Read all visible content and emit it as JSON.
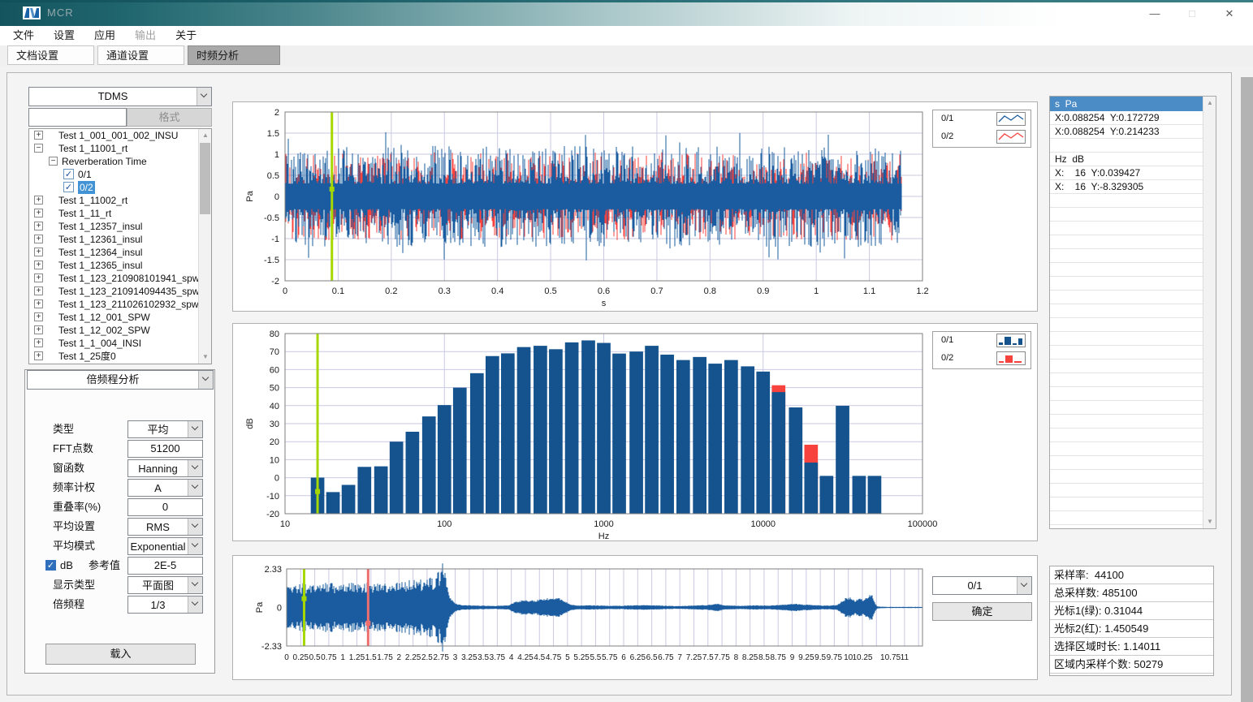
{
  "window": {
    "title": "MCR",
    "controls": [
      {
        "name": "minimize",
        "glyph": "—"
      },
      {
        "name": "maximize",
        "glyph": "□"
      },
      {
        "name": "close",
        "glyph": "✕"
      }
    ]
  },
  "menu": {
    "items": [
      {
        "name": "file",
        "label": "文件",
        "enabled": true
      },
      {
        "name": "settings",
        "label": "设置",
        "enabled": true
      },
      {
        "name": "application",
        "label": "应用",
        "enabled": true
      },
      {
        "name": "output",
        "label": "输出",
        "enabled": false
      },
      {
        "name": "about",
        "label": "关于",
        "enabled": true
      }
    ]
  },
  "tabs": [
    {
      "name": "document-settings",
      "label": "文档设置",
      "active": false
    },
    {
      "name": "channel-settings",
      "label": "通道设置",
      "active": false
    },
    {
      "name": "time-frequency-analysis",
      "label": "时频分析",
      "active": true
    }
  ],
  "sidebar": {
    "format_dropdown": "TDMS",
    "filter_input": "",
    "format_button": "格式",
    "tree": [
      {
        "label": "Test 1_001_001_002_INSU",
        "level": 0,
        "expander": "+"
      },
      {
        "label": "Test 1_11001_rt",
        "level": 0,
        "expander": "-"
      },
      {
        "label": "Reverberation Time",
        "level": 1,
        "expander": "-"
      },
      {
        "label": "0/1",
        "level": 2,
        "checkbox": true,
        "checked": true
      },
      {
        "label": "0/2",
        "level": 2,
        "checkbox": true,
        "checked": true,
        "selected": true
      },
      {
        "label": "Test 1_11002_rt",
        "level": 0,
        "expander": "+"
      },
      {
        "label": "Test 1_11_rt",
        "level": 0,
        "expander": "+"
      },
      {
        "label": "Test 1_12357_insul",
        "level": 0,
        "expander": "+"
      },
      {
        "label": "Test 1_12361_insul",
        "level": 0,
        "expander": "+"
      },
      {
        "label": "Test 1_12364_insul",
        "level": 0,
        "expander": "+"
      },
      {
        "label": "Test 1_12365_insul",
        "level": 0,
        "expander": "+"
      },
      {
        "label": "Test 1_123_210908101941_spw",
        "level": 0,
        "expander": "+"
      },
      {
        "label": "Test 1_123_210914094435_spw",
        "level": 0,
        "expander": "+"
      },
      {
        "label": "Test 1_123_211026102932_spw",
        "level": 0,
        "expander": "+"
      },
      {
        "label": "Test 1_12_001_SPW",
        "level": 0,
        "expander": "+"
      },
      {
        "label": "Test 1_12_002_SPW",
        "level": 0,
        "expander": "+"
      },
      {
        "label": "Test 1_1_004_INSI",
        "level": 0,
        "expander": "+"
      },
      {
        "label": "Test 1_25度0",
        "level": 0,
        "expander": "+"
      }
    ],
    "analysis_dropdown": "倍频程分析",
    "fields": [
      {
        "name": "type",
        "label": "类型",
        "type": "select",
        "value": "平均"
      },
      {
        "name": "fft-points",
        "label": "FFT点数",
        "type": "input",
        "value": "51200"
      },
      {
        "name": "window-function",
        "label": "窗函数",
        "type": "select",
        "value": "Hanning"
      },
      {
        "name": "frequency-weighting",
        "label": "频率计权",
        "type": "select",
        "value": "A"
      },
      {
        "name": "overlap-percent",
        "label": "重叠率(%)",
        "type": "input",
        "value": "0"
      },
      {
        "name": "average-setting",
        "label": "平均设置",
        "type": "select",
        "value": "RMS"
      },
      {
        "name": "average-mode",
        "label": "平均模式",
        "type": "select",
        "value": "Exponential"
      },
      {
        "name": "db-reference",
        "label": "dB",
        "label2": "参考值",
        "type": "checkbox-input",
        "checked": true,
        "value": "2E-5"
      },
      {
        "name": "display-type",
        "label": "显示类型",
        "type": "select",
        "value": "平面图"
      },
      {
        "name": "octave-fraction",
        "label": "倍频程",
        "type": "select",
        "value": "1/3"
      }
    ],
    "load_button": "载入"
  },
  "right_panel": {
    "cursor_header": "s  Pa",
    "cursor_rows": [
      "X:0.088254  Y:0.172729",
      "X:0.088254  Y:0.214233",
      "",
      "Hz  dB",
      "X:    16  Y:0.039427",
      "X:    16  Y:-8.329305"
    ],
    "empty_rows": 24,
    "info": [
      {
        "name": "sample-rate",
        "label": "采样率:  ",
        "value": "44100"
      },
      {
        "name": "total-samples",
        "label": "总采样数: ",
        "value": "485100"
      },
      {
        "name": "cursor1-green",
        "label": "光标1(绿): ",
        "value": "0.31044"
      },
      {
        "name": "cursor2-red",
        "label": "光标2(红): ",
        "value": "1.450549"
      },
      {
        "name": "selection-duration",
        "label": "选择区域时长: ",
        "value": "1.14011"
      },
      {
        "name": "selection-samples",
        "label": "区域内采样个数: ",
        "value": "50279"
      }
    ]
  },
  "bottom_controls": {
    "channel_dropdown": "0/1",
    "confirm_button": "确定"
  },
  "colors": {
    "series1_blue": "#15538e",
    "series2_red": "#f8423e",
    "waveform_blue": "#1a5c9f",
    "cursor_green": "#a6d800",
    "cursor_red": "#ee6d6d",
    "grid": "#c9c9e3",
    "plot_border": "#7f7f7f",
    "header_blue": "#4b8bc6",
    "titlebar_teal": "#1d646c"
  },
  "chart_data": [
    {
      "id": "time-waveform",
      "type": "line",
      "title": "",
      "xlabel": "s",
      "ylabel": "Pa",
      "xlim": [
        0,
        1.2
      ],
      "ylim": [
        -2,
        2
      ],
      "xticks": [
        0,
        0.1,
        0.2,
        0.3,
        0.4,
        0.5,
        0.6,
        0.7,
        0.8,
        0.9,
        1,
        1.1,
        1.2
      ],
      "yticks": [
        2,
        1.5,
        1,
        0.5,
        0,
        -0.5,
        -1,
        -1.5,
        -2
      ],
      "legend": [
        {
          "label": "0/1",
          "color": "#1a5c9f",
          "icon": "line"
        },
        {
          "label": "0/2",
          "color": "#f8423e",
          "icon": "line"
        }
      ],
      "signal": {
        "description": "dense broadband noise waveform",
        "duration_s": 1.163,
        "typical_amplitude_pa": 1.1,
        "peak_amplitude_pa": 1.55
      },
      "cursor": {
        "color": "#a6d800",
        "x": 0.088254,
        "y_series1": 0.172729,
        "y_series2": 0.214233
      }
    },
    {
      "id": "third-octave-spectrum",
      "type": "bar",
      "xlabel": "Hz",
      "ylabel": "dB",
      "xscale": "log",
      "xlim": [
        10,
        100000
      ],
      "ylim": [
        -20,
        80
      ],
      "xticks": [
        10,
        100,
        1000,
        10000,
        100000
      ],
      "yticks": [
        80,
        70,
        60,
        50,
        40,
        30,
        20,
        10,
        0,
        -10,
        -20
      ],
      "categories": [
        16,
        20,
        25,
        31.5,
        40,
        50,
        63,
        80,
        100,
        125,
        160,
        200,
        250,
        315,
        400,
        500,
        630,
        800,
        1000,
        1250,
        1600,
        2000,
        2500,
        3150,
        4000,
        5000,
        6300,
        8000,
        10000,
        12500,
        16000,
        20000,
        25000,
        31500,
        40000,
        50000
      ],
      "series": [
        {
          "name": "0/1",
          "color": "#15538e",
          "values": [
            0.04,
            -8,
            -4,
            6,
            6.3,
            20,
            25.5,
            34,
            40.3,
            50,
            58,
            67.5,
            69,
            72.5,
            73.2,
            71.3,
            75.1,
            76.2,
            74.8,
            68.9,
            70,
            73.2,
            68.3,
            65.3,
            67,
            63.3,
            65.3,
            61.8,
            58.9,
            47.5,
            39,
            8.4,
            1,
            39.9,
            1,
            1
          ]
        },
        {
          "name": "0/2",
          "color": "#f8423e",
          "values": [
            null,
            null,
            null,
            null,
            null,
            null,
            null,
            null,
            null,
            null,
            null,
            null,
            null,
            null,
            null,
            null,
            null,
            null,
            null,
            null,
            null,
            null,
            null,
            null,
            null,
            null,
            null,
            null,
            null,
            51.3,
            null,
            18.3,
            null,
            null,
            null,
            null
          ]
        }
      ],
      "cursor": {
        "color": "#a6d800",
        "x": 16,
        "y_series1": 0.039427,
        "y_series2": -8.329305
      }
    },
    {
      "id": "full-record-waveform",
      "type": "line",
      "xlabel": "",
      "ylabel": "Pa",
      "xlim": [
        0,
        11.32
      ],
      "ylim": [
        -2.33,
        2.33
      ],
      "yticks": [
        2.33,
        0,
        -2.33
      ],
      "xtick_step": 0.25,
      "xtick_max": 11,
      "xtick_skip": [
        10.5
      ],
      "noise_end_s": 2.86,
      "envelope": [
        [
          0,
          1.1
        ],
        [
          0.3,
          1.15
        ],
        [
          0.6,
          1.2
        ],
        [
          1,
          1.18
        ],
        [
          1.5,
          1.22
        ],
        [
          2,
          1.28
        ],
        [
          2.3,
          1.32
        ],
        [
          2.5,
          1.38
        ],
        [
          2.65,
          1.5
        ],
        [
          2.75,
          1.9
        ],
        [
          2.8,
          2.33
        ],
        [
          2.84,
          1.4
        ],
        [
          2.9,
          0.6
        ],
        [
          3,
          0.25
        ],
        [
          3.1,
          0.13
        ],
        [
          3.35,
          0.11
        ],
        [
          3.7,
          0.08
        ],
        [
          3.95,
          0.12
        ],
        [
          4.05,
          0.28
        ],
        [
          4.2,
          0.4
        ],
        [
          4.35,
          0.38
        ],
        [
          4.5,
          0.42
        ],
        [
          4.65,
          0.5
        ],
        [
          4.8,
          0.55
        ],
        [
          4.95,
          0.38
        ],
        [
          5.05,
          0.16
        ],
        [
          5.2,
          0.1
        ],
        [
          5.45,
          0.12
        ],
        [
          5.7,
          0.09
        ],
        [
          6,
          0.1
        ],
        [
          6.3,
          0.13
        ],
        [
          6.6,
          0.11
        ],
        [
          6.9,
          0.08
        ],
        [
          7.2,
          0.1
        ],
        [
          7.5,
          0.14
        ],
        [
          7.65,
          0.22
        ],
        [
          7.8,
          0.12
        ],
        [
          8.1,
          0.09
        ],
        [
          8.35,
          0.12
        ],
        [
          8.6,
          0.1
        ],
        [
          8.85,
          0.16
        ],
        [
          9.05,
          0.2
        ],
        [
          9.2,
          0.16
        ],
        [
          9.35,
          0.14
        ],
        [
          9.6,
          0.1
        ],
        [
          9.8,
          0.13
        ],
        [
          9.95,
          0.5
        ],
        [
          10.05,
          0.55
        ],
        [
          10.12,
          0.35
        ],
        [
          10.2,
          0.55
        ],
        [
          10.28,
          0.4
        ],
        [
          10.35,
          0.65
        ],
        [
          10.42,
          0.8
        ],
        [
          10.47,
          0.25
        ],
        [
          10.52,
          0.05
        ],
        [
          10.7,
          0.03
        ],
        [
          11,
          0.03
        ]
      ],
      "cursors": [
        {
          "name": "cursor1-green",
          "color": "#a6d800",
          "x": 0.31044,
          "handle_y": 0.53
        },
        {
          "name": "cursor2-red",
          "color": "#ee6d6d",
          "x": 1.450549,
          "handle_y": -0.95
        }
      ]
    }
  ]
}
